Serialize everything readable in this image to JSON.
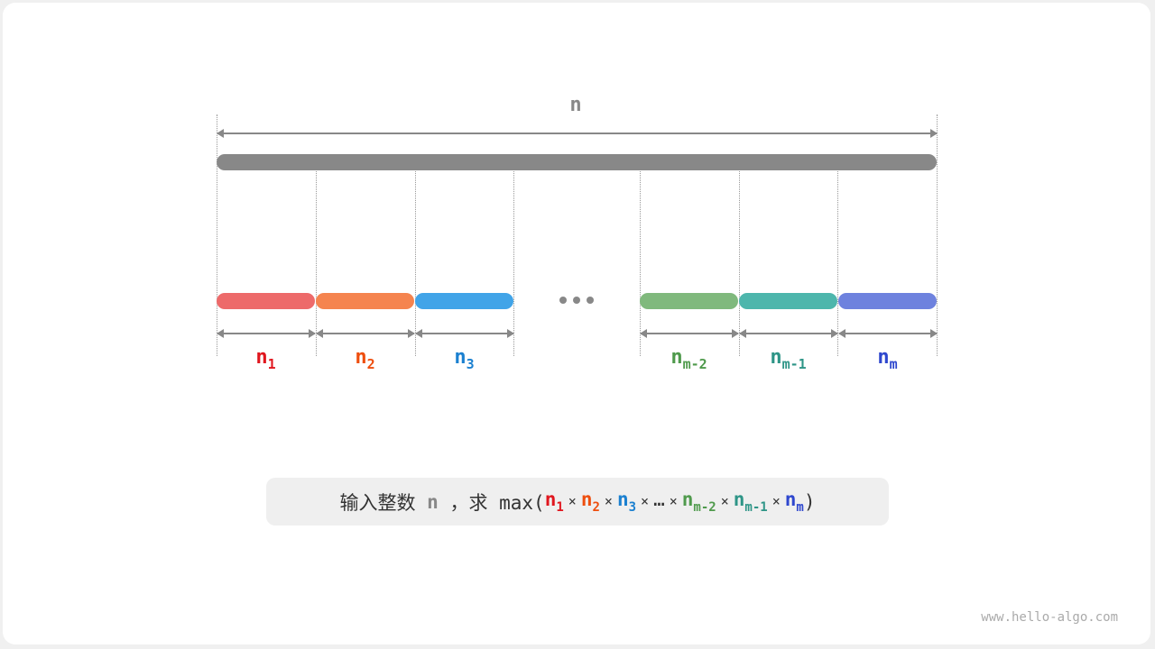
{
  "top_label": "n",
  "dots": "• • •",
  "segments": [
    {
      "base": "n",
      "sub": "1",
      "bar_color": "#ED6A6A",
      "label_color": "#E0161E"
    },
    {
      "base": "n",
      "sub": "2",
      "bar_color": "#F5844F",
      "label_color": "#EE4E0E"
    },
    {
      "base": "n",
      "sub": "3",
      "bar_color": "#41A4E8",
      "label_color": "#1B80D0"
    },
    {
      "base": "n",
      "sub": "m-2",
      "bar_color": "#80B97D",
      "label_color": "#4F9A4C"
    },
    {
      "base": "n",
      "sub": "m-1",
      "bar_color": "#4DB6AC",
      "label_color": "#2E9587"
    },
    {
      "base": "n",
      "sub": "m",
      "bar_color": "#6E82DE",
      "label_color": "#2E47CE"
    }
  ],
  "formula": {
    "prefix": "输入整数 ",
    "n": "n",
    "mid": " ，求 max(",
    "times": "×",
    "ellipsis": "…",
    "suffix": ")"
  },
  "watermark": "www.hello-algo.com"
}
